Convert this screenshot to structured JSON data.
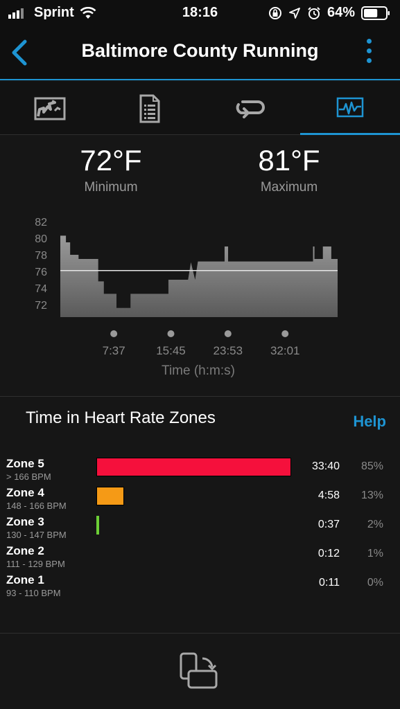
{
  "status_bar": {
    "carrier": "Sprint",
    "time": "18:16",
    "battery_percent": "64%",
    "battery_level": 0.64,
    "icons": [
      "signal-icon",
      "wifi-icon",
      "orientation-lock-icon",
      "location-icon",
      "alarm-icon",
      "battery-icon"
    ]
  },
  "nav": {
    "title": "Baltimore County Running",
    "back_icon": "chevron-left-icon",
    "more_icon": "more-vertical-icon",
    "accent": "#1e94d2"
  },
  "tabs": [
    {
      "icon": "map-icon",
      "active": false
    },
    {
      "icon": "details-list-icon",
      "active": false
    },
    {
      "icon": "laps-icon",
      "active": false
    },
    {
      "icon": "activity-chart-icon",
      "active": true
    }
  ],
  "temperature": {
    "min_value": "72°F",
    "min_label": "Minimum",
    "max_value": "81°F",
    "max_label": "Maximum"
  },
  "chart_data": {
    "type": "area",
    "title": "",
    "xlabel": "Time (h:m:s)",
    "ylabel": "",
    "y_ticks": [
      "82",
      "80",
      "78",
      "76",
      "74",
      "72"
    ],
    "ylim": [
      70.5,
      82.5
    ],
    "x_ticks": [
      "7:37",
      "15:45",
      "23:53",
      "32:01"
    ],
    "x_tick_minutes": [
      7.62,
      15.75,
      23.88,
      32.02
    ],
    "xlim_minutes": [
      0,
      39.5
    ],
    "average_line": 76.1,
    "series": [
      {
        "x_minutes": [
          0,
          0.8,
          0.8,
          1.4,
          1.4,
          2.6,
          2.6,
          5.4,
          5.4,
          6.2,
          6.2,
          6.6,
          6.6,
          8.0,
          8.0,
          10.0,
          10.0,
          15.4,
          15.4,
          18.2,
          18.2,
          18.6,
          18.6,
          19.2,
          19.2,
          19.6,
          19.6,
          23.4,
          23.4,
          23.9,
          23.9,
          36.0,
          36.0,
          36.2,
          36.2,
          37.4,
          37.4,
          38.6,
          38.6,
          39.5
        ],
        "values": [
          80.3,
          80.3,
          79.5,
          79.5,
          78.0,
          78.0,
          77.5,
          77.5,
          74.8,
          74.8,
          73.3,
          73.3,
          73.3,
          73.3,
          71.6,
          71.6,
          73.3,
          73.3,
          75.0,
          75.0,
          75.0,
          77.1,
          77.1,
          75.0,
          75.0,
          77.2,
          77.2,
          77.2,
          79.0,
          79.0,
          77.2,
          77.2,
          79.0,
          79.0,
          77.5,
          77.5,
          79.0,
          79.0,
          77.5,
          77.5
        ]
      }
    ],
    "grid": false,
    "legend": "none"
  },
  "heart_rate": {
    "title": "Time in Heart Rate Zones",
    "help_label": "Help",
    "zones": [
      {
        "name": "Zone 5",
        "range": "> 166 BPM",
        "time": "33:40",
        "percent": "85%",
        "fraction": 0.85,
        "color": "#f5103c"
      },
      {
        "name": "Zone 4",
        "range": "148 - 166 BPM",
        "time": "4:58",
        "percent": "13%",
        "fraction": 0.13,
        "color": "#f59a16"
      },
      {
        "name": "Zone 3",
        "range": "130 - 147 BPM",
        "time": "0:37",
        "percent": "2%",
        "fraction": 0.02,
        "color": "#6ccf36"
      },
      {
        "name": "Zone 2",
        "range": "111 - 129 BPM",
        "time": "0:12",
        "percent": "1%",
        "fraction": 0.0,
        "color": "#1e94d2"
      },
      {
        "name": "Zone 1",
        "range": "93 - 110 BPM",
        "time": "0:11",
        "percent": "0%",
        "fraction": 0.0,
        "color": "#9a9a9a"
      }
    ]
  },
  "bottom": {
    "icon": "rotate-screen-icon"
  }
}
